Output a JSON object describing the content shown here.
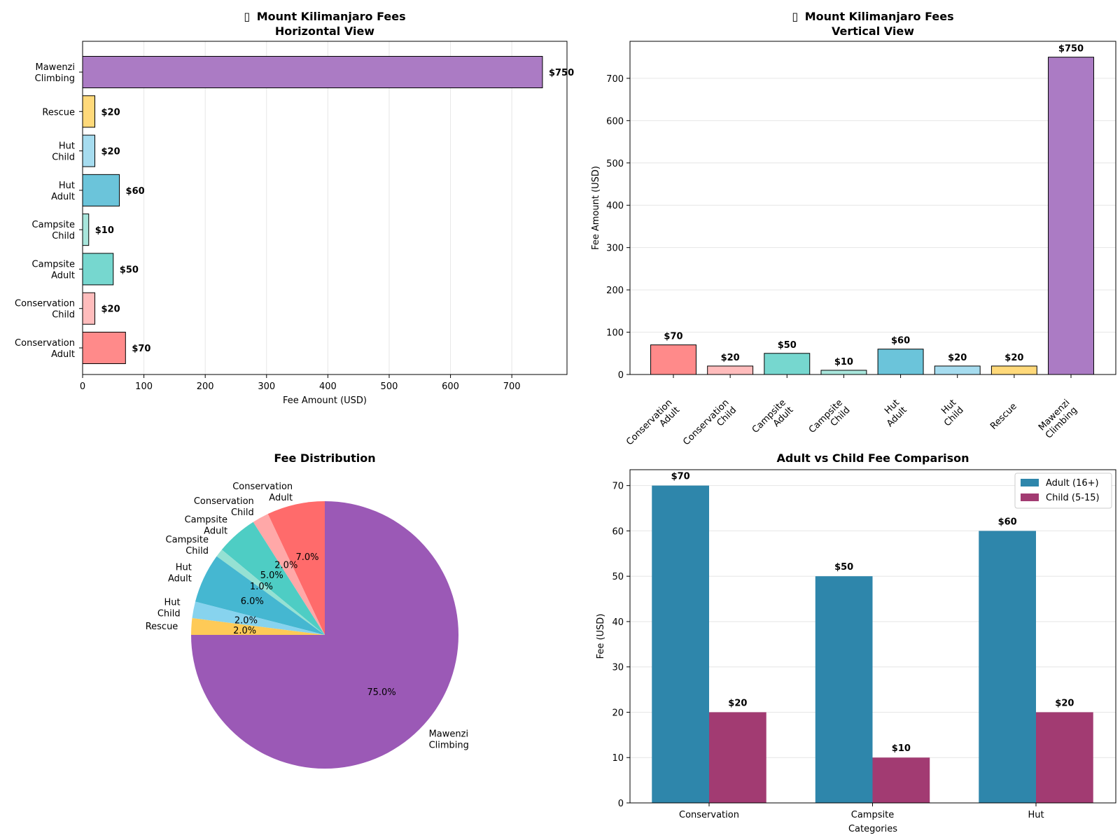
{
  "chart_data": [
    {
      "id": "horizontal",
      "type": "bar",
      "orientation": "horizontal",
      "title_icon": "▯",
      "title": "Mount Kilimanjaro Fees",
      "subtitle": "Horizontal View",
      "xlabel": "Fee Amount (USD)",
      "ylabel": "",
      "xlim": [
        0,
        790
      ],
      "xticks": [
        0,
        100,
        200,
        300,
        400,
        500,
        600,
        700
      ],
      "grid": "x",
      "categories": [
        [
          "Conservation",
          "Adult"
        ],
        [
          "Conservation",
          "Child"
        ],
        [
          "Campsite",
          "Adult"
        ],
        [
          "Campsite",
          "Child"
        ],
        [
          "Hut",
          "Adult"
        ],
        [
          "Hut",
          "Child"
        ],
        [
          "Rescue"
        ],
        [
          "Mawenzi",
          "Climbing"
        ]
      ],
      "values": [
        70,
        20,
        50,
        10,
        60,
        20,
        20,
        750
      ],
      "value_labels": [
        "$70",
        "$20",
        "$50",
        "$10",
        "$60",
        "$20",
        "$20",
        "$750"
      ],
      "colors": [
        "#ff8a8a",
        "#ffbcbc",
        "#76d7cf",
        "#a8e6dc",
        "#6bc4da",
        "#a6dcef",
        "#ffd97a",
        "#ab7bc4"
      ]
    },
    {
      "id": "vertical",
      "type": "bar",
      "orientation": "vertical",
      "title_icon": "▯",
      "title": "Mount Kilimanjaro Fees",
      "subtitle": "Vertical View",
      "xlabel": "",
      "ylabel": "Fee Amount (USD)",
      "ylim": [
        0,
        787.5
      ],
      "yticks": [
        0,
        100,
        200,
        300,
        400,
        500,
        600,
        700
      ],
      "grid": "y",
      "categories": [
        [
          "Conservation",
          "Adult"
        ],
        [
          "Conservation",
          "Child"
        ],
        [
          "Campsite",
          "Adult"
        ],
        [
          "Campsite",
          "Child"
        ],
        [
          "Hut",
          "Adult"
        ],
        [
          "Hut",
          "Child"
        ],
        [
          "Rescue"
        ],
        [
          "Mawenzi",
          "Climbing"
        ]
      ],
      "values": [
        70,
        20,
        50,
        10,
        60,
        20,
        20,
        750
      ],
      "value_labels": [
        "$70",
        "$20",
        "$50",
        "$10",
        "$60",
        "$20",
        "$20",
        "$750"
      ],
      "colors": [
        "#ff8a8a",
        "#ffbcbc",
        "#76d7cf",
        "#a8e6dc",
        "#6bc4da",
        "#a6dcef",
        "#ffd97a",
        "#ab7bc4"
      ]
    },
    {
      "id": "pie",
      "type": "pie",
      "title": "Fee Distribution",
      "start_angle_deg": 90,
      "labels": [
        [
          "Conservation",
          "Adult"
        ],
        [
          "Conservation",
          "Child"
        ],
        [
          "Campsite",
          "Adult"
        ],
        [
          "Campsite",
          "Child"
        ],
        [
          "Hut",
          "Adult"
        ],
        [
          "Hut",
          "Child"
        ],
        [
          "Rescue"
        ],
        [
          "Mawenzi",
          "Climbing"
        ]
      ],
      "values": [
        70,
        20,
        50,
        10,
        60,
        20,
        20,
        750
      ],
      "percent_labels": [
        "7.0%",
        "2.0%",
        "5.0%",
        "1.0%",
        "6.0%",
        "2.0%",
        "2.0%",
        "75.0%"
      ],
      "colors": [
        "#ff6b6b",
        "#ffa8a8",
        "#4ecdc4",
        "#95e1d3",
        "#45b7d1",
        "#87d3ee",
        "#feca57",
        "#9b59b6"
      ]
    },
    {
      "id": "grouped",
      "type": "bar",
      "orientation": "vertical-grouped",
      "title": "Adult vs Child Fee Comparison",
      "xlabel": "Categories",
      "ylabel": "Fee (USD)",
      "ylim": [
        0,
        73.5
      ],
      "yticks": [
        0,
        10,
        20,
        30,
        40,
        50,
        60,
        70
      ],
      "grid": "y",
      "legend": "top-right",
      "categories": [
        "Conservation",
        "Campsite",
        "Hut"
      ],
      "series": [
        {
          "name": "Adult (16+)",
          "values": [
            70,
            50,
            60
          ],
          "value_labels": [
            "$70",
            "$50",
            "$60"
          ],
          "color": "#2e86ab"
        },
        {
          "name": "Child (5-15)",
          "values": [
            20,
            10,
            20
          ],
          "value_labels": [
            "$20",
            "$10",
            "$20"
          ],
          "color": "#a23b72"
        }
      ]
    }
  ]
}
